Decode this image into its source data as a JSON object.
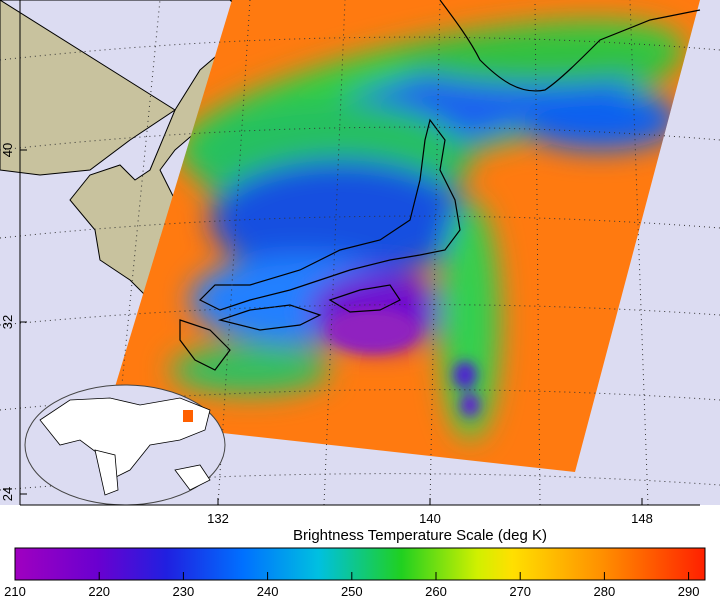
{
  "map": {
    "latitude_labels": [
      40,
      32,
      24
    ],
    "longitude_labels": [
      132,
      140,
      148
    ]
  },
  "colorbar": {
    "title": "Brightness Temperature Scale (deg K)",
    "ticks": [
      210,
      220,
      230,
      240,
      250,
      260,
      270,
      280,
      290
    ]
  }
}
